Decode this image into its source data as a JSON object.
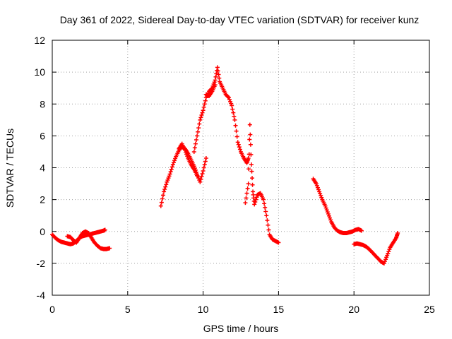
{
  "chart_data": {
    "type": "scatter",
    "title": "Day 361 of 2022, Sidereal Day-to-day VTEC variation (SDTVAR) for receiver kunz",
    "xlabel": "GPS time / hours",
    "ylabel": "SDTVAR / TECUs",
    "xlim": [
      0,
      25
    ],
    "ylim": [
      -4,
      12
    ],
    "xticks": [
      "0",
      "5",
      "10",
      "15",
      "20",
      "25"
    ],
    "yticks": [
      "-4",
      "-2",
      "0",
      "2",
      "4",
      "6",
      "8",
      "10",
      "12"
    ],
    "grid": true,
    "marker": "plus",
    "color": "#ff0000",
    "series": [
      {
        "name": "SDTVAR",
        "segments": [
          [
            [
              0.0,
              -0.2
            ],
            [
              0.2,
              -0.4
            ],
            [
              0.4,
              -0.55
            ],
            [
              0.6,
              -0.65
            ],
            [
              0.8,
              -0.7
            ],
            [
              1.0,
              -0.75
            ],
            [
              1.2,
              -0.8
            ],
            [
              1.4,
              -0.75
            ],
            [
              1.6,
              -0.6
            ],
            [
              1.8,
              -0.4
            ],
            [
              2.0,
              -0.3
            ],
            [
              2.2,
              -0.25
            ],
            [
              2.4,
              -0.2
            ],
            [
              2.6,
              -0.15
            ],
            [
              2.8,
              -0.1
            ],
            [
              3.0,
              -0.05
            ],
            [
              3.2,
              0.0
            ],
            [
              3.4,
              0.05
            ],
            [
              3.5,
              0.1
            ]
          ],
          [
            [
              1.0,
              -0.3
            ],
            [
              1.2,
              -0.35
            ],
            [
              1.4,
              -0.55
            ],
            [
              1.6,
              -0.7
            ],
            [
              1.8,
              -0.4
            ],
            [
              2.0,
              -0.1
            ],
            [
              2.2,
              0.0
            ],
            [
              2.4,
              -0.1
            ],
            [
              2.6,
              -0.4
            ],
            [
              2.8,
              -0.7
            ],
            [
              3.0,
              -0.9
            ],
            [
              3.2,
              -1.05
            ],
            [
              3.4,
              -1.1
            ],
            [
              3.6,
              -1.1
            ],
            [
              3.8,
              -1.05
            ]
          ],
          [
            [
              7.2,
              1.6
            ],
            [
              7.4,
              2.5
            ],
            [
              7.6,
              3.1
            ],
            [
              7.8,
              3.6
            ],
            [
              8.0,
              4.2
            ],
            [
              8.2,
              4.7
            ],
            [
              8.4,
              5.1
            ],
            [
              8.6,
              5.3
            ],
            [
              8.8,
              5.2
            ],
            [
              9.0,
              4.9
            ],
            [
              9.2,
              4.5
            ],
            [
              9.4,
              4.1
            ],
            [
              9.6,
              3.6
            ],
            [
              9.8,
              3.1
            ],
            [
              10.0,
              3.8
            ],
            [
              10.2,
              4.6
            ]
          ],
          [
            [
              8.4,
              5.2
            ],
            [
              8.6,
              5.5
            ],
            [
              8.8,
              5.1
            ],
            [
              9.0,
              4.6
            ],
            [
              9.2,
              4.2
            ],
            [
              9.4,
              3.9
            ],
            [
              9.6,
              3.5
            ]
          ],
          [
            [
              9.4,
              5.0
            ],
            [
              9.6,
              6.0
            ],
            [
              9.8,
              7.0
            ],
            [
              10.0,
              7.6
            ],
            [
              10.2,
              8.4
            ],
            [
              10.4,
              8.8
            ],
            [
              10.6,
              9.0
            ],
            [
              10.8,
              9.5
            ],
            [
              10.95,
              10.3
            ],
            [
              11.1,
              9.4
            ],
            [
              11.3,
              9.0
            ],
            [
              11.5,
              8.6
            ],
            [
              11.7,
              8.4
            ],
            [
              11.9,
              7.9
            ],
            [
              12.1,
              7.0
            ],
            [
              12.3,
              5.6
            ],
            [
              12.5,
              5.0
            ],
            [
              12.7,
              4.6
            ],
            [
              12.9,
              4.3
            ],
            [
              13.0,
              4.6
            ]
          ],
          [
            [
              10.2,
              8.6
            ],
            [
              10.4,
              8.5
            ],
            [
              10.6,
              8.8
            ],
            [
              10.8,
              9.2
            ]
          ],
          [
            [
              12.8,
              1.8
            ],
            [
              13.0,
              3.0
            ],
            [
              13.1,
              6.7
            ],
            [
              13.2,
              4.2
            ],
            [
              13.3,
              2.5
            ],
            [
              13.4,
              1.7
            ],
            [
              13.6,
              2.3
            ],
            [
              13.8,
              2.4
            ],
            [
              14.0,
              2.0
            ],
            [
              14.2,
              1.0
            ],
            [
              14.4,
              -0.2
            ],
            [
              14.6,
              -0.5
            ],
            [
              14.8,
              -0.6
            ],
            [
              15.0,
              -0.7
            ]
          ],
          [
            [
              17.3,
              3.3
            ],
            [
              17.5,
              3.0
            ],
            [
              17.7,
              2.5
            ],
            [
              17.9,
              2.0
            ],
            [
              18.1,
              1.6
            ],
            [
              18.3,
              1.1
            ],
            [
              18.5,
              0.6
            ],
            [
              18.7,
              0.25
            ],
            [
              18.9,
              0.05
            ],
            [
              19.1,
              -0.05
            ],
            [
              19.3,
              -0.1
            ],
            [
              19.5,
              -0.1
            ],
            [
              19.7,
              -0.05
            ],
            [
              19.9,
              0.0
            ],
            [
              20.1,
              0.1
            ],
            [
              20.3,
              0.15
            ],
            [
              20.5,
              0.05
            ]
          ],
          [
            [
              20.0,
              -0.8
            ],
            [
              20.2,
              -0.75
            ],
            [
              20.4,
              -0.8
            ],
            [
              20.6,
              -0.85
            ],
            [
              20.8,
              -0.95
            ],
            [
              21.0,
              -1.1
            ],
            [
              21.2,
              -1.3
            ],
            [
              21.4,
              -1.5
            ],
            [
              21.6,
              -1.7
            ],
            [
              21.8,
              -1.9
            ],
            [
              22.0,
              -2.0
            ],
            [
              22.2,
              -1.5
            ],
            [
              22.4,
              -1.0
            ],
            [
              22.6,
              -0.7
            ],
            [
              22.8,
              -0.4
            ],
            [
              22.9,
              -0.1
            ]
          ]
        ]
      }
    ]
  }
}
